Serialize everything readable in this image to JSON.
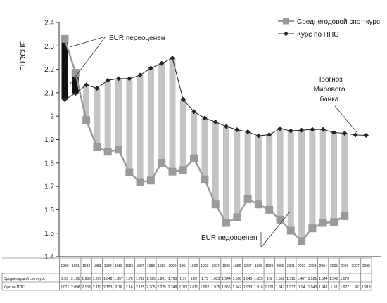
{
  "chart_data": {
    "type": "line",
    "ylabel": "EURCHF",
    "ylim": [
      1.4,
      2.4
    ],
    "yticks": [
      1.4,
      1.5,
      1.6,
      1.7,
      1.8,
      1.9,
      2.0,
      2.1,
      2.2,
      2.3,
      2.4
    ],
    "ytick_labels": [
      "1.4",
      "1.5",
      "1.6",
      "1.7",
      "1.8",
      "1.9",
      "2",
      "2.1",
      "2.2",
      "2.3",
      "2.4"
    ],
    "legend_position": "top-right",
    "categories": [
      "1980",
      "1981",
      "1982",
      "1983",
      "1984",
      "1985",
      "1986",
      "1987",
      "1988",
      "1989",
      "1990",
      "1991",
      "1992",
      "1993",
      "1994",
      "1995",
      "1996",
      "1997",
      "1998",
      "1999",
      "2000",
      "2001",
      "2002",
      "2003",
      "2004",
      "2005",
      "2006",
      "2007",
      "2008"
    ],
    "series": [
      {
        "name": "Среднегодовой спот-курс",
        "color": "#9a9a9a",
        "marker": "square",
        "values": [
          2.33,
          2.185,
          1.983,
          1.867,
          1.848,
          1.857,
          1.76,
          1.718,
          1.725,
          1.801,
          1.763,
          1.77,
          1.82,
          1.73,
          1.623,
          1.544,
          1.568,
          1.645,
          1.623,
          1.6,
          1.558,
          1.511,
          1.467,
          1.521,
          1.544,
          1.548,
          1.573,
          null,
          null
        ],
        "table_labels": [
          "2.33",
          "2.185",
          "1.983",
          "1.867",
          "1.848",
          "1.857",
          "1.76",
          "1.718",
          "1.725",
          "1.801",
          "1.763",
          "1.77",
          "1.82",
          "1.73",
          "1.623",
          "1.544",
          "1.568",
          "1.645",
          "1.623",
          "1.6",
          "1.558",
          "1.511",
          "1.467",
          "1.521",
          "1.544",
          "1.548",
          "1.573",
          "",
          ""
        ]
      },
      {
        "name": "Курс по ППС",
        "color": "#222222",
        "marker": "diamond",
        "values": [
          2.071,
          2.098,
          2.133,
          2.119,
          2.153,
          2.16,
          2.16,
          2.175,
          2.205,
          2.225,
          2.248,
          2.071,
          2.019,
          1.992,
          1.975,
          1.956,
          1.942,
          1.933,
          1.916,
          1.921,
          1.947,
          1.937,
          1.94,
          1.943,
          1.943,
          1.93,
          1.927,
          1.92,
          1.918
        ],
        "table_labels": [
          "2.071",
          "2.098",
          "2.133",
          "2.119",
          "2.153",
          "2.16",
          "2.16",
          "2.175",
          "2.205",
          "2.225",
          "2.248",
          "2.071",
          "2.019",
          "1.992",
          "1.975",
          "1.956",
          "1.942",
          "1.933",
          "1.916",
          "1.921",
          "1.947",
          "1.937",
          "1.94",
          "1.943",
          "1.943",
          "1.93",
          "1.927",
          "1.92",
          "1.918"
        ]
      }
    ],
    "table_row_labels": [
      "Среднегодовой спот-курс",
      "Курс по ППС"
    ],
    "annotations": {
      "overvalued": "EUR переоценен",
      "undervalued": "EUR недооценен",
      "forecast": [
        "Прогноз",
        "Мирового",
        "банка"
      ]
    }
  }
}
